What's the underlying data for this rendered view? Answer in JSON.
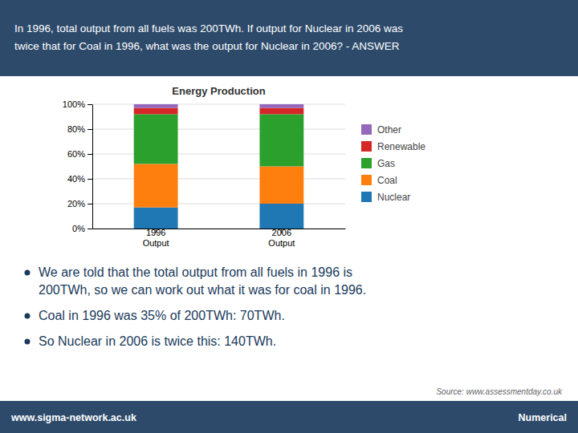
{
  "chart_data": {
    "type": "bar",
    "stacked": true,
    "title": "Energy Production",
    "categories": [
      "1996\nOutput",
      "2006\nOutput"
    ],
    "series": [
      {
        "name": "Nuclear",
        "values": [
          17,
          20
        ]
      },
      {
        "name": "Coal",
        "values": [
          35,
          30
        ]
      },
      {
        "name": "Gas",
        "values": [
          40,
          42
        ]
      },
      {
        "name": "Renewable",
        "values": [
          5,
          5
        ]
      },
      {
        "name": "Other",
        "values": [
          3,
          3
        ]
      }
    ],
    "ylim": [
      0,
      100
    ],
    "yticks": [
      {
        "value": 0,
        "label": "0%"
      },
      {
        "value": 20,
        "label": "20%"
      },
      {
        "value": 40,
        "label": "40%"
      },
      {
        "value": 60,
        "label": "60%"
      },
      {
        "value": 80,
        "label": "80%"
      },
      {
        "value": 100,
        "label": "100%"
      }
    ],
    "grid": true,
    "legend": "right"
  },
  "header_text": "In 1996, total output from all fuels was 200TWh. If output for Nuclear in 2006 was\ntwice that for Coal in 1996, what was the output for Nuclear in 2006? - ANSWER",
  "bullet_points": [
    "We are told that the total output from all fuels in 1996 is\n200TWh, so we can work out what it was for coal in 1996.",
    "Coal in 1996 was 35% of 200TWh: 70TWh.",
    "So Nuclear in 2006 is twice this: 140TWh."
  ],
  "source_text": "Source: www.assessmentday.co.uk",
  "footer_left": "www.sigma-network.ac.uk",
  "footer_right": "Numerical"
}
